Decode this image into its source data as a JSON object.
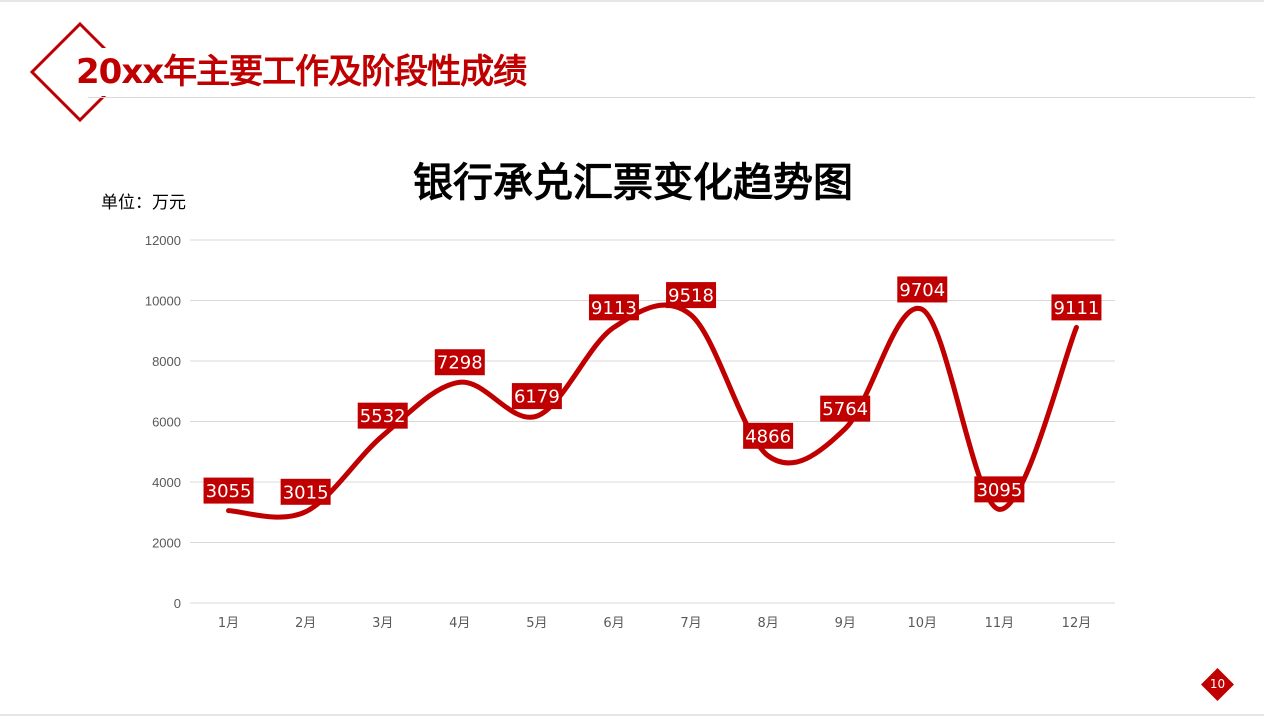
{
  "header": {
    "title": "20xx年主要工作及阶段性成绩"
  },
  "unit_label": "单位：万元",
  "page_number": "10",
  "colors": {
    "accent": "#c00000",
    "gridline": "#d9d9d9",
    "axis_text": "#595959"
  },
  "chart_data": {
    "type": "line",
    "title": "银行承兑汇票变化趋势图",
    "xlabel": "",
    "ylabel": "单位：万元",
    "categories": [
      "1月",
      "2月",
      "3月",
      "4月",
      "5月",
      "6月",
      "7月",
      "8月",
      "9月",
      "10月",
      "11月",
      "12月"
    ],
    "series": [
      {
        "name": "银行承兑汇票",
        "values": [
          3055,
          3015,
          5532,
          7298,
          6179,
          9113,
          9518,
          4866,
          5764,
          9704,
          3095,
          9111
        ],
        "smooth": true,
        "color": "#c00000",
        "data_labels": true
      }
    ],
    "ylim": [
      0,
      12000
    ],
    "yticks": [
      0,
      2000,
      4000,
      6000,
      8000,
      10000,
      12000
    ],
    "grid": true,
    "legend": "none"
  }
}
